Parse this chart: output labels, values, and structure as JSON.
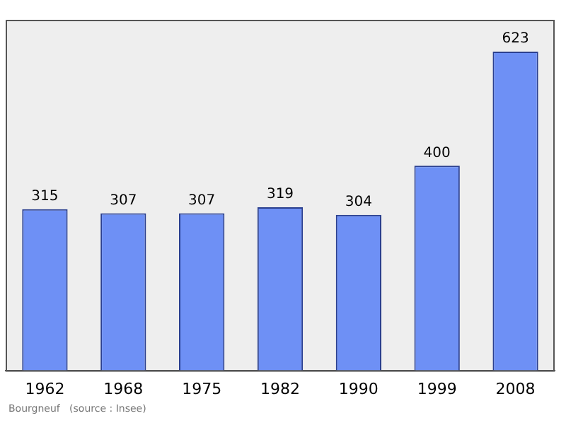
{
  "chart_data": {
    "type": "bar",
    "categories": [
      "1962",
      "1968",
      "1975",
      "1982",
      "1990",
      "1999",
      "2008"
    ],
    "values": [
      315,
      307,
      307,
      319,
      304,
      400,
      623
    ],
    "color": "#6e90f5",
    "data_labels": true,
    "grid": false,
    "legend": false,
    "annotations": [
      "Bourgneuf   (source : Insee)"
    ]
  }
}
